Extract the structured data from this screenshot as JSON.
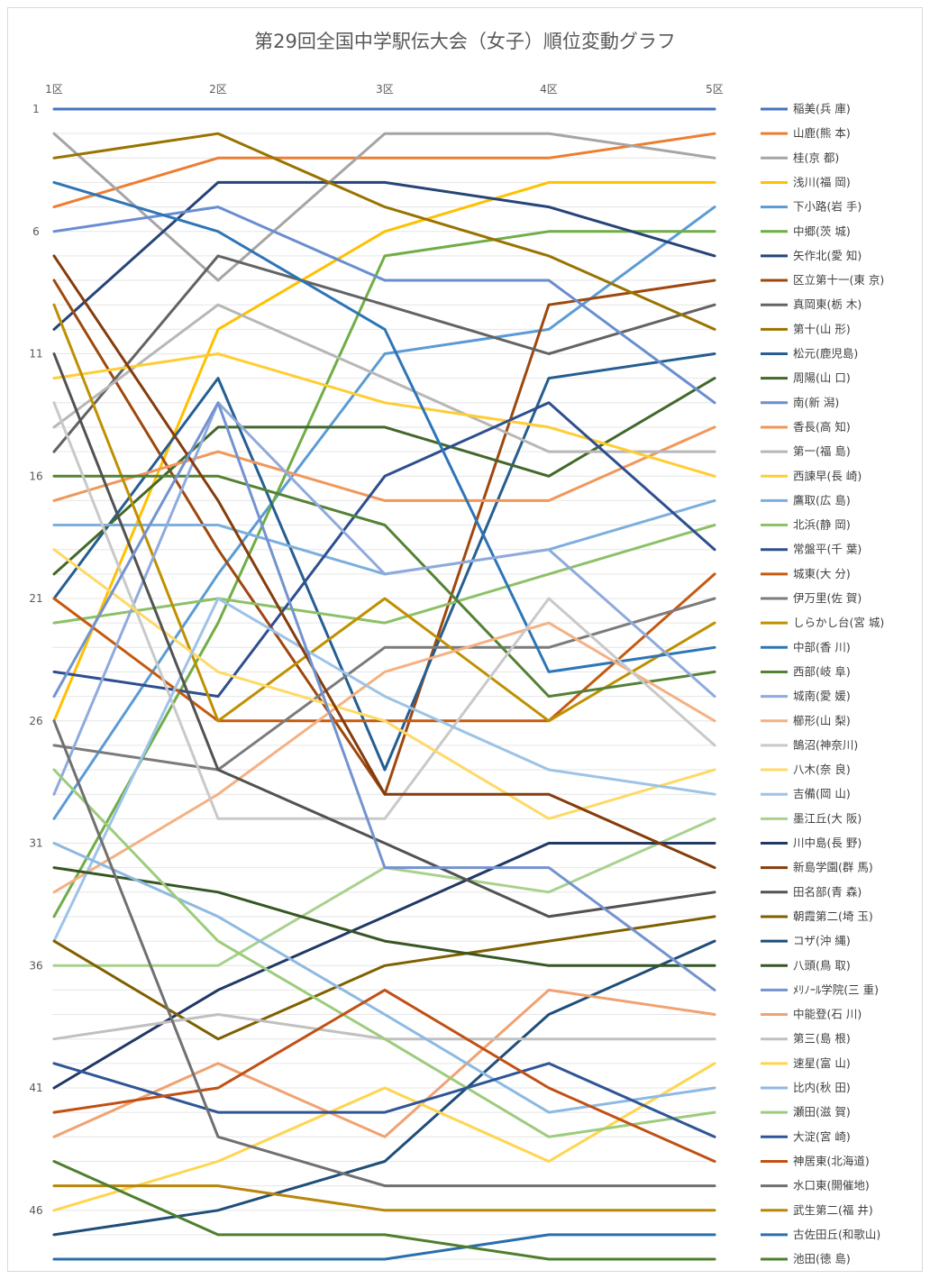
{
  "chart_data": {
    "type": "line",
    "title": "第29回全国中学駅伝大会（女子）順位変動グラフ",
    "x": [
      "1区",
      "2区",
      "3区",
      "4区",
      "5区"
    ],
    "y_ticks": [
      "1",
      "6",
      "11",
      "16",
      "21",
      "26",
      "31",
      "36",
      "41",
      "46"
    ],
    "ylim": [
      1,
      47
    ],
    "y_reversed": true,
    "grid": "horizontal",
    "legend_position": "right",
    "series": [
      {
        "name": "稲美(兵 庫)",
        "color": "#4472c4",
        "values": [
          1,
          1,
          1,
          1,
          1
        ]
      },
      {
        "name": "山鹿(熊 本)",
        "color": "#ed7d31",
        "values": [
          5,
          3,
          3,
          3,
          2
        ]
      },
      {
        "name": "桂(京 都)",
        "color": "#a5a5a5",
        "values": [
          2,
          8,
          2,
          2,
          3
        ]
      },
      {
        "name": "浅川(福 岡)",
        "color": "#ffc000",
        "values": [
          26,
          10,
          6,
          4,
          4
        ]
      },
      {
        "name": "下小路(岩 手)",
        "color": "#5b9bd5",
        "values": [
          30,
          20,
          11,
          10,
          5
        ]
      },
      {
        "name": "中郷(茨 城)",
        "color": "#70ad47",
        "values": [
          34,
          22,
          7,
          6,
          6
        ]
      },
      {
        "name": "矢作北(愛 知)",
        "color": "#264478",
        "values": [
          10,
          4,
          4,
          5,
          7
        ]
      },
      {
        "name": "区立第十一(東 京)",
        "color": "#9e480e",
        "values": [
          8,
          19,
          29,
          9,
          8
        ]
      },
      {
        "name": "真岡東(栃 木)",
        "color": "#636363",
        "values": [
          15,
          7,
          9,
          11,
          9
        ]
      },
      {
        "name": "第十(山 形)",
        "color": "#997300",
        "values": [
          3,
          2,
          5,
          7,
          10
        ]
      },
      {
        "name": "松元(鹿児島)",
        "color": "#255e91",
        "values": [
          21,
          12,
          28,
          12,
          11
        ]
      },
      {
        "name": "周陽(山 口)",
        "color": "#43682b",
        "values": [
          20,
          14,
          14,
          16,
          12
        ]
      },
      {
        "name": "南(新 潟)",
        "color": "#698ed0",
        "values": [
          6,
          5,
          8,
          8,
          13
        ]
      },
      {
        "name": "香長(高 知)",
        "color": "#f1975a",
        "values": [
          17,
          15,
          17,
          17,
          14
        ]
      },
      {
        "name": "第一(福 島)",
        "color": "#b7b7b7",
        "values": [
          14,
          9,
          12,
          15,
          15
        ]
      },
      {
        "name": "西諫早(長 崎)",
        "color": "#ffcd33",
        "values": [
          12,
          11,
          13,
          14,
          16
        ]
      },
      {
        "name": "鷹取(広 島)",
        "color": "#7cafdd",
        "values": [
          18,
          18,
          20,
          19,
          17
        ]
      },
      {
        "name": "北浜(静 岡)",
        "color": "#8cc168",
        "values": [
          22,
          21,
          22,
          20,
          18
        ]
      },
      {
        "name": "常盤平(千 葉)",
        "color": "#2e4f8f",
        "values": [
          24,
          25,
          16,
          13,
          19
        ]
      },
      {
        "name": "城東(大 分)",
        "color": "#c55a11",
        "values": [
          21,
          26,
          26,
          26,
          20
        ]
      },
      {
        "name": "伊万里(佐 賀)",
        "color": "#7b7b7b",
        "values": [
          27,
          28,
          23,
          23,
          21
        ]
      },
      {
        "name": "しらかし台(宮 城)",
        "color": "#bf9000",
        "values": [
          9,
          26,
          21,
          26,
          22
        ]
      },
      {
        "name": "中部(香 川)",
        "color": "#2e75b6",
        "values": [
          4,
          6,
          10,
          24,
          23
        ]
      },
      {
        "name": "西部(岐 阜)",
        "color": "#548235",
        "values": [
          16,
          16,
          18,
          25,
          24
        ]
      },
      {
        "name": "城南(愛 媛)",
        "color": "#8faadc",
        "values": [
          29,
          13,
          20,
          19,
          25
        ]
      },
      {
        "name": "櫛形(山 梨)",
        "color": "#f4b183",
        "values": [
          33,
          29,
          24,
          22,
          26
        ]
      },
      {
        "name": "鵠沼(神奈川)",
        "color": "#c9c9c9",
        "values": [
          13,
          30,
          30,
          21,
          27
        ]
      },
      {
        "name": "八木(奈 良)",
        "color": "#ffd966",
        "values": [
          19,
          24,
          26,
          30,
          28
        ]
      },
      {
        "name": "吉備(岡 山)",
        "color": "#9dc3e6",
        "values": [
          35,
          21,
          25,
          28,
          29
        ]
      },
      {
        "name": "墨江丘(大 阪)",
        "color": "#a9d18e",
        "values": [
          36,
          36,
          32,
          33,
          30
        ]
      },
      {
        "name": "川中島(長 野)",
        "color": "#203864",
        "values": [
          41,
          37,
          34,
          31,
          31
        ]
      },
      {
        "name": "新島学園(群 馬)",
        "color": "#843c0c",
        "values": [
          7,
          17,
          29,
          29,
          32
        ]
      },
      {
        "name": "田名部(青 森)",
        "color": "#525252",
        "values": [
          11,
          28,
          31,
          34,
          33
        ]
      },
      {
        "name": "朝霞第二(埼 玉)",
        "color": "#7f6000",
        "values": [
          35,
          39,
          36,
          35,
          34
        ]
      },
      {
        "name": "コザ(沖 縄)",
        "color": "#1f4e79",
        "values": [
          47,
          46,
          44,
          38,
          35
        ]
      },
      {
        "name": "八頭(鳥 取)",
        "color": "#375623",
        "values": [
          32,
          33,
          35,
          36,
          36
        ]
      },
      {
        "name": "ﾒﾘﾉｰﾙ学院(三 重)",
        "color": "#7393cf",
        "values": [
          25,
          13,
          32,
          32,
          37
        ]
      },
      {
        "name": "中能登(石 川)",
        "color": "#f0a272",
        "values": [
          43,
          40,
          43,
          37,
          38
        ]
      },
      {
        "name": "第三(島 根)",
        "color": "#c0c0c0",
        "values": [
          39,
          38,
          39,
          39,
          39
        ]
      },
      {
        "name": "速星(富 山)",
        "color": "#ffd54f",
        "values": [
          46,
          44,
          41,
          44,
          40
        ]
      },
      {
        "name": "比内(秋 田)",
        "color": "#8eb9e2",
        "values": [
          31,
          34,
          38,
          42,
          41
        ]
      },
      {
        "name": "瀬田(滋 賀)",
        "color": "#9ccc7c",
        "values": [
          28,
          35,
          39,
          43,
          42
        ]
      },
      {
        "name": "大淀(宮 崎)",
        "color": "#2f5597",
        "values": [
          40,
          42,
          42,
          40,
          43
        ]
      },
      {
        "name": "神居東(北海道)",
        "color": "#c05014",
        "values": [
          42,
          41,
          37,
          41,
          44
        ]
      },
      {
        "name": "水口東(開催地)",
        "color": "#707070",
        "values": [
          26,
          43,
          45,
          45,
          45
        ]
      },
      {
        "name": "武生第二(福 井)",
        "color": "#b8860b",
        "values": [
          45,
          45,
          46,
          46,
          46
        ]
      },
      {
        "name": "古佐田丘(和歌山)",
        "color": "#2a6ead",
        "values": [
          48,
          48,
          48,
          47,
          47
        ]
      },
      {
        "name": "池田(徳 島)",
        "color": "#4d7f2e",
        "values": [
          44,
          47,
          47,
          48,
          48
        ]
      }
    ]
  }
}
